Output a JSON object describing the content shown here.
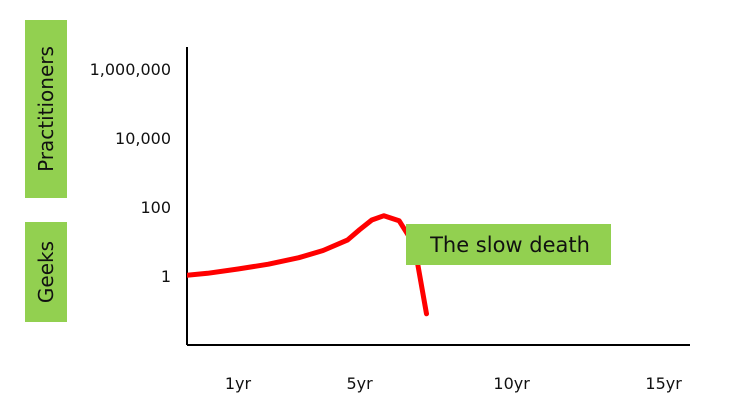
{
  "chart_data": {
    "type": "line",
    "title": "",
    "xlabel": "",
    "ylabel": "",
    "y_scale": "log",
    "x_ticks": [
      {
        "value": 1,
        "label": "1yr"
      },
      {
        "value": 5,
        "label": "5yr"
      },
      {
        "value": 10,
        "label": "10yr"
      },
      {
        "value": 15,
        "label": "15yr"
      }
    ],
    "y_ticks": [
      {
        "value": 1,
        "label": "1"
      },
      {
        "value": 100,
        "label": "100"
      },
      {
        "value": 10000,
        "label": "10,000"
      },
      {
        "value": 1000000,
        "label": "1,000,000"
      }
    ],
    "y_category_labels": [
      {
        "label": "Practitioners",
        "range": [
          10000,
          1000000
        ]
      },
      {
        "label": "Geeks",
        "range": [
          1,
          100
        ]
      }
    ],
    "series": [
      {
        "name": "",
        "color": "#ff0000",
        "x": [
          -1.5,
          0,
          1,
          2,
          3,
          3.8,
          4.6,
          5.0,
          5.4,
          5.8,
          6.3,
          6.8,
          7.2
        ],
        "y": [
          0.9,
          1.2,
          1.6,
          2.2,
          3.4,
          5.5,
          11,
          22,
          42,
          56,
          40,
          8,
          0.08
        ]
      }
    ],
    "annotations": [
      {
        "text": "The slow death",
        "x": 10,
        "y": 50,
        "background": "#92d050"
      }
    ],
    "label_background": "#92d050",
    "grid": false,
    "legend": "none"
  }
}
